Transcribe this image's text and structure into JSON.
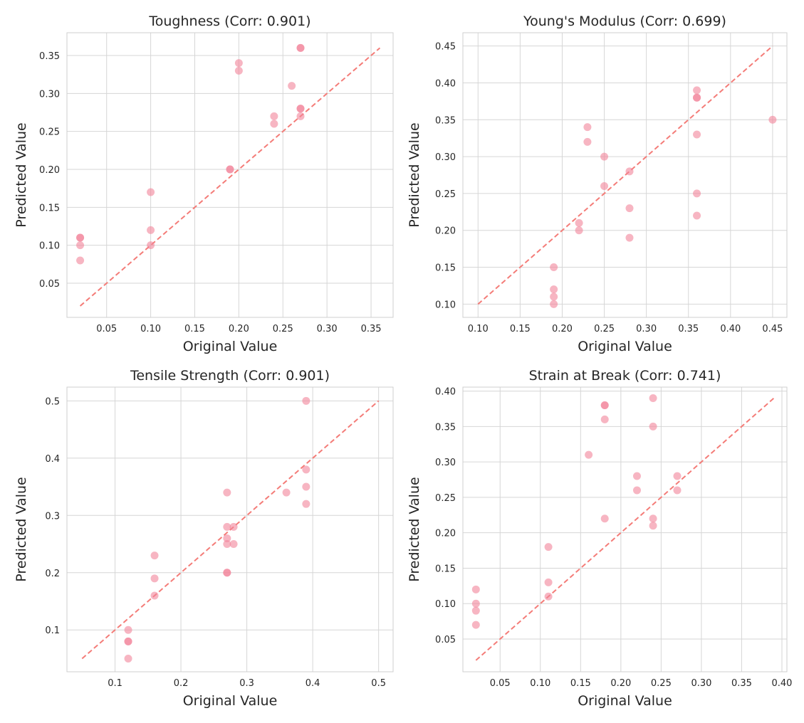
{
  "colors": {
    "point": "#f2849a",
    "ideal_line": "#f47c78",
    "grid": "#d6d6d6"
  },
  "chart_data": [
    {
      "type": "scatter",
      "title": "Toughness (Corr: 0.901)",
      "xlabel": "Original Value",
      "ylabel": "Predicted Value",
      "xlim": [
        0.005,
        0.375
      ],
      "ylim": [
        0.005,
        0.38
      ],
      "xticks": [
        0.05,
        0.1,
        0.15,
        0.2,
        0.25,
        0.3,
        0.35
      ],
      "xtick_labels": [
        "0.05",
        "0.10",
        "0.15",
        "0.20",
        "0.25",
        "0.30",
        "0.35"
      ],
      "yticks": [
        0.05,
        0.1,
        0.15,
        0.2,
        0.25,
        0.3,
        0.35
      ],
      "ytick_labels": [
        "0.05",
        "0.10",
        "0.15",
        "0.20",
        "0.25",
        "0.30",
        "0.35"
      ],
      "ideal_line": [
        [
          0.02,
          0.02
        ],
        [
          0.36,
          0.36
        ]
      ],
      "x": [
        0.02,
        0.02,
        0.02,
        0.02,
        0.1,
        0.1,
        0.1,
        0.19,
        0.19,
        0.2,
        0.2,
        0.24,
        0.24,
        0.26,
        0.27,
        0.27,
        0.27,
        0.27,
        0.27
      ],
      "y": [
        0.11,
        0.11,
        0.1,
        0.08,
        0.17,
        0.12,
        0.1,
        0.2,
        0.2,
        0.34,
        0.33,
        0.27,
        0.26,
        0.31,
        0.36,
        0.36,
        0.28,
        0.28,
        0.27
      ]
    },
    {
      "type": "scatter",
      "title": "Young's Modulus (Corr: 0.699)",
      "xlabel": "Original Value",
      "ylabel": "Predicted Value",
      "xlim": [
        0.082,
        0.467
      ],
      "ylim": [
        0.082,
        0.468
      ],
      "xticks": [
        0.1,
        0.15,
        0.2,
        0.25,
        0.3,
        0.35,
        0.4,
        0.45
      ],
      "xtick_labels": [
        "0.10",
        "0.15",
        "0.20",
        "0.25",
        "0.30",
        "0.35",
        "0.40",
        "0.45"
      ],
      "yticks": [
        0.1,
        0.15,
        0.2,
        0.25,
        0.3,
        0.35,
        0.4,
        0.45
      ],
      "ytick_labels": [
        "0.10",
        "0.15",
        "0.20",
        "0.25",
        "0.30",
        "0.35",
        "0.40",
        "0.45"
      ],
      "ideal_line": [
        [
          0.1,
          0.1
        ],
        [
          0.45,
          0.45
        ]
      ],
      "x": [
        0.19,
        0.19,
        0.19,
        0.19,
        0.22,
        0.22,
        0.23,
        0.23,
        0.25,
        0.25,
        0.28,
        0.28,
        0.28,
        0.36,
        0.36,
        0.36,
        0.36,
        0.36,
        0.36,
        0.45
      ],
      "y": [
        0.15,
        0.12,
        0.11,
        0.1,
        0.21,
        0.2,
        0.34,
        0.32,
        0.3,
        0.26,
        0.28,
        0.23,
        0.19,
        0.39,
        0.38,
        0.38,
        0.33,
        0.25,
        0.22,
        0.35
      ]
    },
    {
      "type": "scatter",
      "title": "Tensile Strength (Corr: 0.901)",
      "xlabel": "Original Value",
      "ylabel": "Predicted Value",
      "xlim": [
        0.027,
        0.522
      ],
      "ylim": [
        0.027,
        0.524
      ],
      "xticks": [
        0.1,
        0.2,
        0.3,
        0.4,
        0.5
      ],
      "xtick_labels": [
        "0.1",
        "0.2",
        "0.3",
        "0.4",
        "0.5"
      ],
      "yticks": [
        0.1,
        0.2,
        0.3,
        0.4,
        0.5
      ],
      "ytick_labels": [
        "0.1",
        "0.2",
        "0.3",
        "0.4",
        "0.5"
      ],
      "ideal_line": [
        [
          0.05,
          0.05
        ],
        [
          0.5,
          0.5
        ]
      ],
      "x": [
        0.12,
        0.12,
        0.12,
        0.12,
        0.16,
        0.16,
        0.16,
        0.27,
        0.27,
        0.27,
        0.27,
        0.27,
        0.27,
        0.28,
        0.28,
        0.36,
        0.39,
        0.39,
        0.39,
        0.39
      ],
      "y": [
        0.1,
        0.08,
        0.08,
        0.05,
        0.23,
        0.19,
        0.16,
        0.34,
        0.28,
        0.26,
        0.25,
        0.2,
        0.2,
        0.28,
        0.25,
        0.34,
        0.5,
        0.38,
        0.35,
        0.32
      ]
    },
    {
      "type": "scatter",
      "title": "Strain at Break (Corr: 0.741)",
      "xlabel": "Original Value",
      "ylabel": "Predicted Value",
      "xlim": [
        0.0038,
        0.4062
      ],
      "ylim": [
        0.0038,
        0.4056
      ],
      "xticks": [
        0.05,
        0.1,
        0.15,
        0.2,
        0.25,
        0.3,
        0.35,
        0.4
      ],
      "xtick_labels": [
        "0.05",
        "0.10",
        "0.15",
        "0.20",
        "0.25",
        "0.30",
        "0.35",
        "0.40"
      ],
      "yticks": [
        0.05,
        0.1,
        0.15,
        0.2,
        0.25,
        0.3,
        0.35,
        0.4
      ],
      "ytick_labels": [
        "0.05",
        "0.10",
        "0.15",
        "0.20",
        "0.25",
        "0.30",
        "0.35",
        "0.40"
      ],
      "ideal_line": [
        [
          0.02,
          0.02
        ],
        [
          0.39,
          0.39
        ]
      ],
      "x": [
        0.02,
        0.02,
        0.02,
        0.02,
        0.11,
        0.11,
        0.11,
        0.16,
        0.18,
        0.18,
        0.18,
        0.18,
        0.22,
        0.22,
        0.24,
        0.24,
        0.24,
        0.24,
        0.27,
        0.27
      ],
      "y": [
        0.12,
        0.1,
        0.09,
        0.07,
        0.18,
        0.13,
        0.11,
        0.31,
        0.38,
        0.38,
        0.36,
        0.22,
        0.28,
        0.26,
        0.39,
        0.35,
        0.22,
        0.21,
        0.28,
        0.26
      ]
    }
  ]
}
